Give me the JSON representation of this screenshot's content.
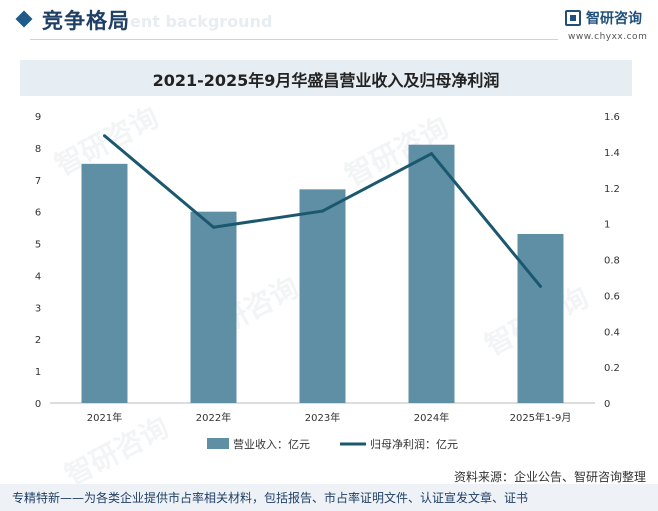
{
  "header": {
    "title": "竞争格局",
    "bg_text": "ent background",
    "brand_name": "智研咨询",
    "brand_url": "www.chyxx.com"
  },
  "watermark_text": "智研咨询",
  "chart_data": {
    "type": "bar",
    "title": "2021-2025年9月华盛昌营业收入及归母净利润",
    "categories": [
      "2021年",
      "2022年",
      "2023年",
      "2024年",
      "2025年1-9月"
    ],
    "series": [
      {
        "name": "营业收入：亿元",
        "type": "bar",
        "axis": "left",
        "values": [
          7.5,
          6.0,
          6.7,
          8.1,
          5.3
        ],
        "color": "#5e8fa5"
      },
      {
        "name": "归母净利润：亿元",
        "type": "line",
        "axis": "right",
        "values": [
          1.49,
          0.98,
          1.07,
          1.39,
          0.65
        ],
        "color": "#1b5870"
      }
    ],
    "ylim_left": [
      0,
      9
    ],
    "yticks_left": [
      "0",
      "1",
      "2",
      "3",
      "4",
      "5",
      "6",
      "7",
      "8",
      "9"
    ],
    "ylim_right": [
      0,
      1.6
    ],
    "yticks_right": [
      "0",
      "0.2",
      "0.4",
      "0.6",
      "0.8",
      "1",
      "1.2",
      "1.4",
      "1.6"
    ],
    "legend_position": "bottom-center"
  },
  "source": "资料来源：企业公告、智研咨询整理",
  "footer": "专精特新——为各类企业提供市占率相关材料，包括报告、市占率证明文件、认证宣发文章、证书"
}
